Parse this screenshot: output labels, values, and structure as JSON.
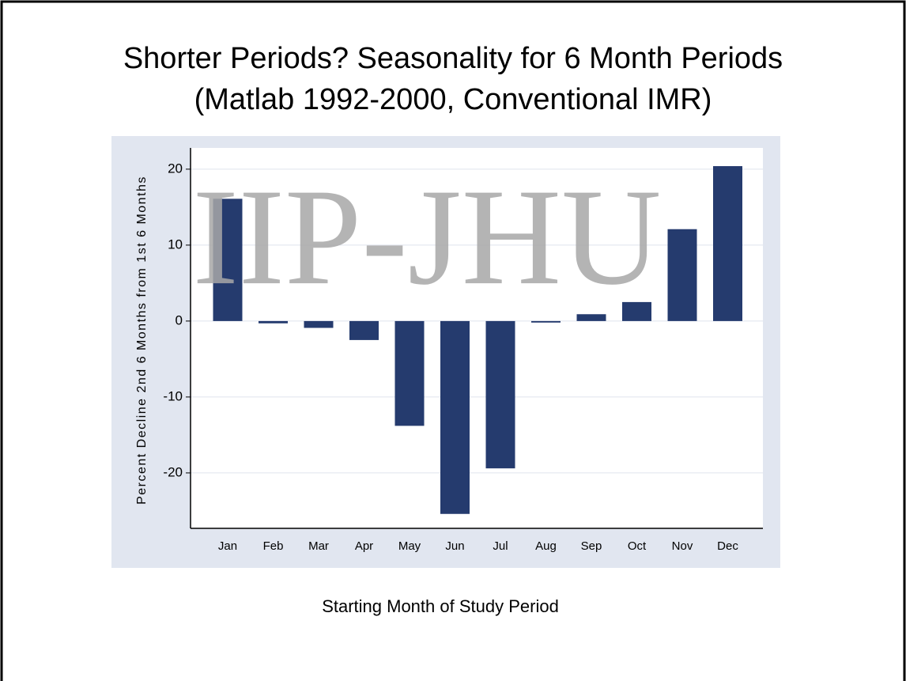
{
  "chart_data": {
    "type": "bar",
    "title": [
      "Shorter Periods? Seasonality for 6 Month Periods",
      "(Matlab 1992-2000, Conventional IMR)"
    ],
    "watermark": "IIP-JHU",
    "x_label": "Starting Month of Study Period",
    "y_label": "Percent Decline 2nd 6 Months from 1st 6 Months",
    "categories": [
      "Jan",
      "Feb",
      "Mar",
      "Apr",
      "May",
      "Jun",
      "Jul",
      "Aug",
      "Sep",
      "Oct",
      "Nov",
      "Dec"
    ],
    "values": [
      16.1,
      -0.3,
      -0.9,
      -2.5,
      -13.8,
      -25.4,
      -19.4,
      -0.2,
      0.9,
      2.5,
      12.1,
      20.4
    ],
    "color": "#253b6e",
    "ylim": [
      -27.3,
      22.8
    ],
    "yticks": [
      -20,
      -10,
      0,
      10,
      20
    ],
    "grid": true
  }
}
